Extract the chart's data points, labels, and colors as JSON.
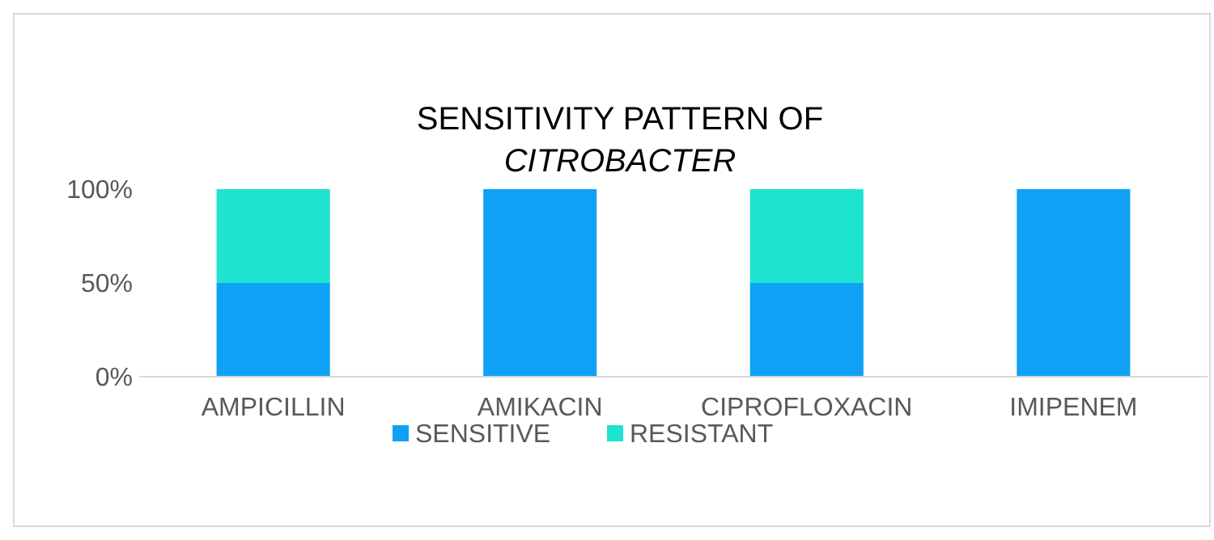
{
  "chart_data": {
    "type": "bar",
    "title": "SENSITIVITY PATTERN OF",
    "subtitle": "CITROBACTER",
    "categories": [
      "AMPICILLIN",
      "AMIKACIN",
      "CIPROFLOXACIN",
      "IMIPENEM"
    ],
    "stacked": true,
    "series": [
      {
        "name": "SENSITIVE",
        "color": "#0ea1f6",
        "values": [
          50,
          100,
          50,
          100
        ]
      },
      {
        "name": "RESISTANT",
        "color": "#1ee3cf",
        "values": [
          50,
          0,
          50,
          0
        ]
      }
    ],
    "ylim": [
      0,
      100
    ],
    "yticks": [
      {
        "value": 0,
        "label": "0%"
      },
      {
        "value": 50,
        "label": "50%"
      },
      {
        "value": 100,
        "label": "100%"
      }
    ],
    "legend": "bottom"
  }
}
